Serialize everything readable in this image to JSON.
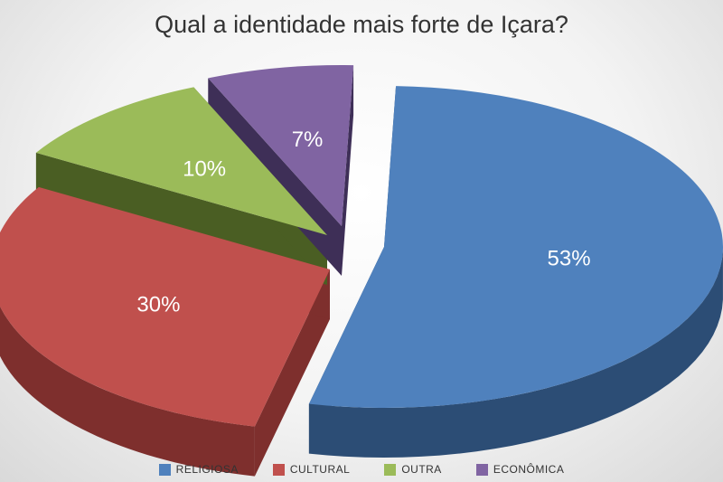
{
  "chart_data": {
    "type": "pie",
    "title": "Qual a identidade mais forte de Içara?",
    "categories": [
      "RELIGIOSA",
      "CULTURAL",
      "OUTRA",
      "ECONÔMICA"
    ],
    "values": [
      53,
      30,
      10,
      7
    ],
    "labels": [
      "53%",
      "30%",
      "10%",
      "7%"
    ],
    "colors": [
      "#4f81bd",
      "#c0504d",
      "#9bbb59",
      "#8064a2"
    ],
    "side_colors": [
      "#2c4d75",
      "#7e2f2d",
      "#4a5e23",
      "#3e2f57"
    ],
    "legend_position": "bottom",
    "style": "3d-exploded"
  }
}
